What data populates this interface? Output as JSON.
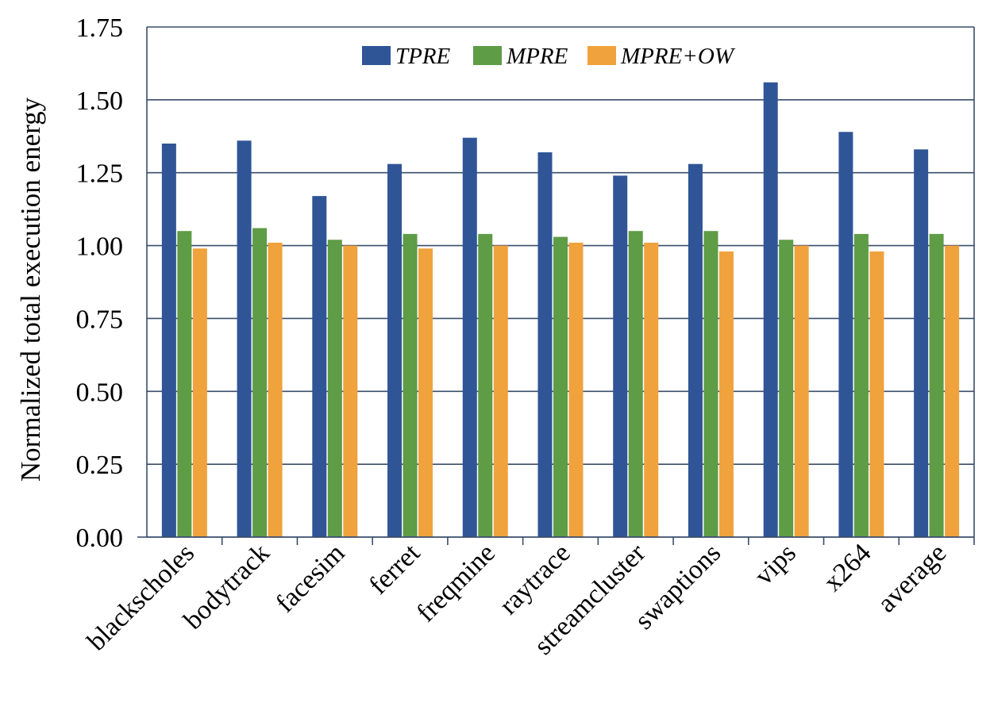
{
  "chart_data": {
    "type": "bar",
    "title": "",
    "xlabel": "",
    "ylabel": "Normalized total execution energy",
    "ylim": [
      0,
      1.75
    ],
    "yticks": [
      "0.00",
      "0.25",
      "0.50",
      "0.75",
      "1.00",
      "1.25",
      "1.50",
      "1.75"
    ],
    "grid": true,
    "legend_position": "top-center",
    "categories": [
      "blackscholes",
      "bodytrack",
      "facesim",
      "ferret",
      "freqmine",
      "raytrace",
      "streamcluster",
      "swaptions",
      "vips",
      "x264",
      "average"
    ],
    "series": [
      {
        "name": "TPRE",
        "color": "#2F5597",
        "values": [
          1.35,
          1.36,
          1.17,
          1.28,
          1.37,
          1.32,
          1.24,
          1.28,
          1.56,
          1.39,
          1.33
        ]
      },
      {
        "name": "MPRE",
        "color": "#5E9C46",
        "values": [
          1.05,
          1.06,
          1.02,
          1.04,
          1.04,
          1.03,
          1.05,
          1.05,
          1.02,
          1.04,
          1.04
        ]
      },
      {
        "name": "MPRE+OW",
        "color": "#F0A23C",
        "values": [
          0.99,
          1.01,
          1.0,
          0.99,
          1.0,
          1.01,
          1.01,
          0.98,
          1.0,
          0.98,
          1.0
        ]
      }
    ]
  }
}
